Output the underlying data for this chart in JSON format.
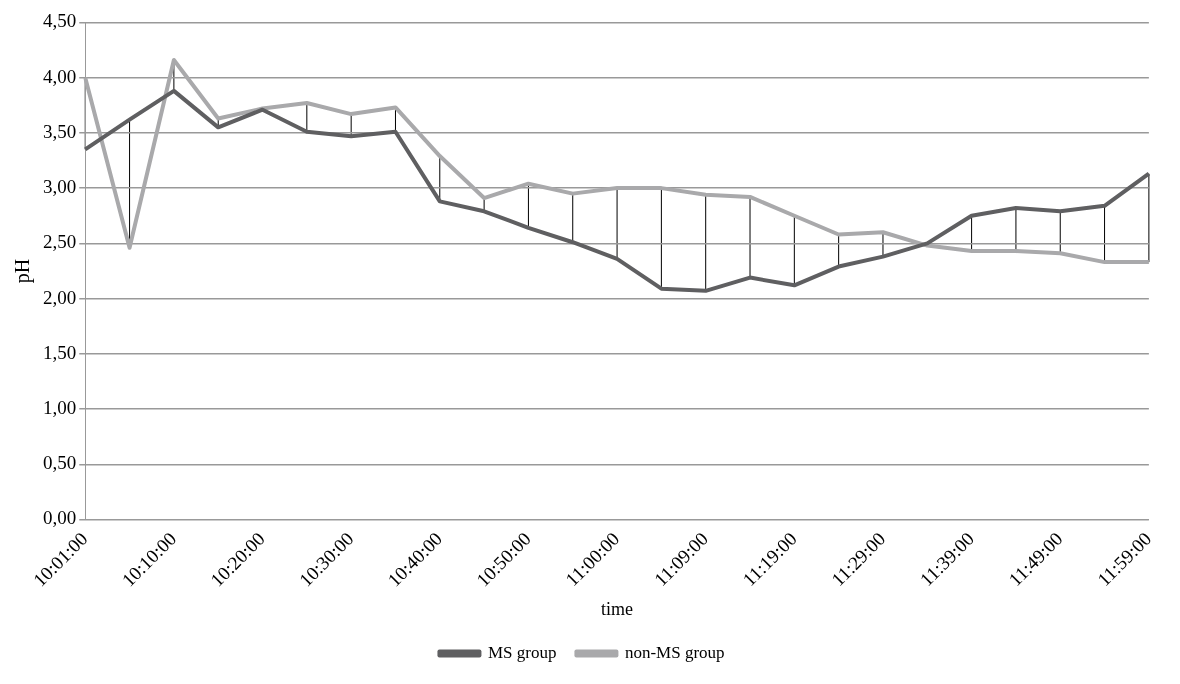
{
  "chart_data": {
    "type": "line",
    "xlabel": "time",
    "ylabel": "pH",
    "categories": [
      "10:01:00",
      null,
      "10:10:00",
      null,
      "10:20:00",
      null,
      "10:30:00",
      null,
      "10:40:00",
      null,
      "10:50:00",
      null,
      "11:00:00",
      null,
      "11:09:00",
      null,
      "11:19:00",
      null,
      "11:29:00",
      null,
      "11:39:00",
      null,
      "11:49:00",
      null,
      "11:59:00"
    ],
    "series": [
      {
        "name": "MS group",
        "color": "#5f5f61",
        "values": [
          3.35,
          3.62,
          3.88,
          3.55,
          3.71,
          3.51,
          3.47,
          3.51,
          2.88,
          2.79,
          2.64,
          2.51,
          2.36,
          2.09,
          2.07,
          2.19,
          2.12,
          2.29,
          2.38,
          2.5,
          2.75,
          2.82,
          2.79,
          2.84,
          3.13
        ]
      },
      {
        "name": "non-MS group",
        "color": "#a9a9ab",
        "values": [
          4.0,
          2.46,
          4.16,
          3.63,
          3.72,
          3.77,
          3.67,
          3.73,
          3.29,
          2.91,
          3.04,
          2.95,
          3.0,
          3.0,
          2.94,
          2.92,
          2.75,
          2.58,
          2.6,
          2.48,
          2.43,
          2.43,
          2.41,
          2.33,
          2.33
        ]
      }
    ],
    "ylim": [
      0,
      4.5
    ],
    "yticks": [
      {
        "value": 0,
        "label": "0,00"
      },
      {
        "value": 0.5,
        "label": "0,50"
      },
      {
        "value": 1,
        "label": "1,00"
      },
      {
        "value": 1.5,
        "label": "1,50"
      },
      {
        "value": 2,
        "label": "2,00"
      },
      {
        "value": 2.5,
        "label": "2,50"
      },
      {
        "value": 3,
        "label": "3,00"
      },
      {
        "value": 3.5,
        "label": "3,50"
      },
      {
        "value": 4,
        "label": "4,00"
      },
      {
        "value": 4.5,
        "label": "4,50"
      }
    ],
    "grid": "y",
    "legend": "bottom",
    "marker": "none",
    "line_style": "solid"
  }
}
